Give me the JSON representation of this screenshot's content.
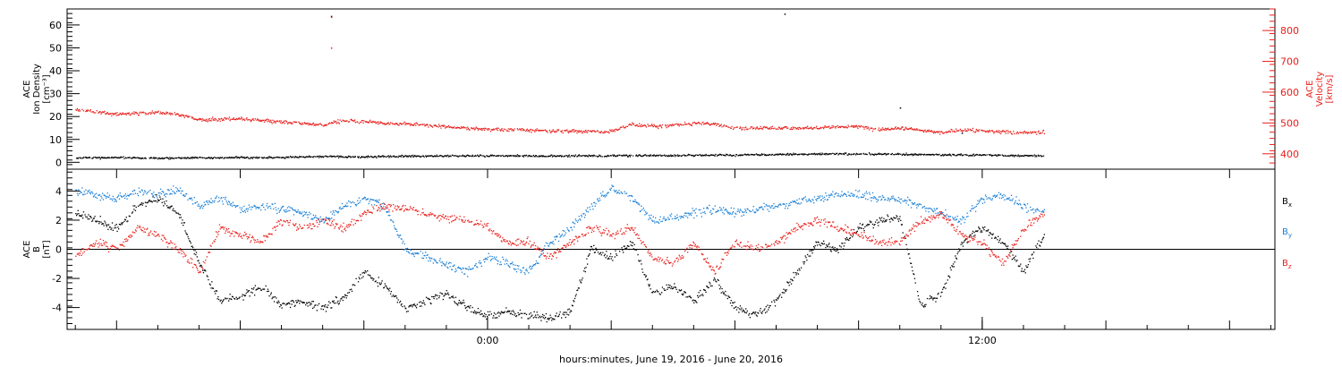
{
  "colors": {
    "black": "#000000",
    "red": "#e8201c",
    "blue": "#1a7fd6",
    "background": "#ffffff"
  },
  "xlabel": "hours:minutes, June 19, 2016 - June 20, 2016",
  "chart_data": [
    {
      "type": "scatter",
      "panel": "plasma",
      "x_unit": "hours since 2016-06-19 00:00 UTC",
      "xlim": [
        -10.2,
        19.1
      ],
      "x_ticks": [
        {
          "x": 0,
          "label": "0:00"
        },
        {
          "x": 12,
          "label": "12:00"
        }
      ],
      "left_axis": {
        "label_lines": [
          "ACE",
          "Ion Density",
          "[cm⁻³]"
        ],
        "ylim": [
          -3,
          67
        ],
        "ticks": [
          "0",
          "10",
          "20",
          "30",
          "40",
          "50",
          "60"
        ]
      },
      "right_axis": {
        "label_lines": [
          "ACE",
          "Velocity",
          "[km/s]"
        ],
        "ylim": [
          350,
          870
        ],
        "ticks": [
          "400",
          "500",
          "600",
          "700",
          "800"
        ]
      },
      "series": [
        {
          "axis": "left",
          "color": "black",
          "points": [
            [
              -10.0,
              2.1
            ],
            [
              -9.0,
              2.3
            ],
            [
              -8.0,
              2.0
            ],
            [
              -7.0,
              2.2
            ],
            [
              -6.0,
              2.3
            ],
            [
              -5.0,
              2.4
            ],
            [
              -4.0,
              2.8
            ],
            [
              -3.0,
              2.6
            ],
            [
              -2.0,
              2.9
            ],
            [
              -1.0,
              3.0
            ],
            [
              0.0,
              3.1
            ],
            [
              1.0,
              3.0
            ],
            [
              2.0,
              3.0
            ],
            [
              3.0,
              3.1
            ],
            [
              4.0,
              3.2
            ],
            [
              5.0,
              3.3
            ],
            [
              6.0,
              3.4
            ],
            [
              7.0,
              3.6
            ],
            [
              8.0,
              3.8
            ],
            [
              9.0,
              3.9
            ],
            [
              10.0,
              3.7
            ],
            [
              11.0,
              3.5
            ],
            [
              12.0,
              3.4
            ],
            [
              13.0,
              3.1
            ],
            [
              13.5,
              3.0
            ],
            [
              -3.8,
              64.0
            ],
            [
              7.2,
              65.0
            ],
            [
              10.0,
              24.0
            ],
            [
              11.5,
              13.0
            ]
          ]
        },
        {
          "axis": "right",
          "color": "red",
          "points": [
            [
              -10.0,
              545
            ],
            [
              -9.6,
              540
            ],
            [
              -9.0,
              530
            ],
            [
              -8.0,
              535
            ],
            [
              -7.6,
              532
            ],
            [
              -7.0,
              512
            ],
            [
              -6.0,
              515
            ],
            [
              -5.0,
              505
            ],
            [
              -4.5,
              500
            ],
            [
              -4.0,
              495
            ],
            [
              -3.5,
              510
            ],
            [
              -2.5,
              500
            ],
            [
              -1.5,
              495
            ],
            [
              -0.5,
              485
            ],
            [
              0.0,
              482
            ],
            [
              1.0,
              478
            ],
            [
              2.0,
              475
            ],
            [
              3.0,
              474
            ],
            [
              3.5,
              497
            ],
            [
              4.0,
              490
            ],
            [
              5.0,
              500
            ],
            [
              5.5,
              498
            ],
            [
              6.0,
              485
            ],
            [
              7.0,
              484
            ],
            [
              8.0,
              485
            ],
            [
              9.0,
              490
            ],
            [
              9.5,
              480
            ],
            [
              10.0,
              485
            ],
            [
              10.5,
              478
            ],
            [
              11.0,
              470
            ],
            [
              11.5,
              480
            ],
            [
              12.0,
              476
            ],
            [
              13.0,
              470
            ],
            [
              13.5,
              472
            ],
            [
              -3.8,
              845
            ],
            [
              -3.8,
              745
            ]
          ]
        }
      ]
    },
    {
      "type": "scatter",
      "panel": "imf",
      "x_unit": "hours since 2016-06-19 00:00 UTC",
      "xlim": [
        -10.2,
        19.1
      ],
      "left_axis": {
        "label_lines": [
          "ACE",
          "B",
          "[nT]"
        ],
        "ylim": [
          -5.5,
          5.5
        ],
        "ticks": [
          "-4",
          "-2",
          "0",
          "2",
          "4"
        ]
      },
      "zero_line": 0,
      "legend": [
        {
          "label": "B",
          "sub": "x",
          "color": "black"
        },
        {
          "label": "B",
          "sub": "y",
          "color": "blue"
        },
        {
          "label": "B",
          "sub": "z",
          "color": "red"
        }
      ],
      "series": [
        {
          "name": "Bx",
          "color": "black",
          "points": [
            [
              -10.0,
              2.5
            ],
            [
              -9.5,
              2.0
            ],
            [
              -9.0,
              1.5
            ],
            [
              -8.5,
              3.0
            ],
            [
              -8.0,
              3.5
            ],
            [
              -7.5,
              2.5
            ],
            [
              -7.0,
              -1.0
            ],
            [
              -6.5,
              -3.5
            ],
            [
              -6.0,
              -3.2
            ],
            [
              -5.5,
              -2.5
            ],
            [
              -5.0,
              -3.8
            ],
            [
              -4.5,
              -3.5
            ],
            [
              -4.0,
              -4.0
            ],
            [
              -3.5,
              -3.3
            ],
            [
              -3.0,
              -1.5
            ],
            [
              -2.5,
              -2.5
            ],
            [
              -2.0,
              -4.0
            ],
            [
              -1.5,
              -3.5
            ],
            [
              -1.0,
              -3.0
            ],
            [
              -0.5,
              -4.0
            ],
            [
              0.0,
              -4.6
            ],
            [
              0.5,
              -4.3
            ],
            [
              1.0,
              -4.5
            ],
            [
              1.5,
              -4.7
            ],
            [
              2.0,
              -4.2
            ],
            [
              2.5,
              0.0
            ],
            [
              3.0,
              -0.5
            ],
            [
              3.5,
              0.5
            ],
            [
              4.0,
              -3.0
            ],
            [
              4.5,
              -2.5
            ],
            [
              5.0,
              -3.5
            ],
            [
              5.5,
              -2.0
            ],
            [
              6.0,
              -4.0
            ],
            [
              6.5,
              -4.5
            ],
            [
              7.0,
              -3.5
            ],
            [
              7.5,
              -1.5
            ],
            [
              8.0,
              0.5
            ],
            [
              8.5,
              0.0
            ],
            [
              9.0,
              1.5
            ],
            [
              9.5,
              2.0
            ],
            [
              10.0,
              2.2
            ],
            [
              10.5,
              -3.8
            ],
            [
              11.0,
              -3.0
            ],
            [
              11.5,
              0.5
            ],
            [
              12.0,
              1.5
            ],
            [
              12.5,
              0.5
            ],
            [
              13.0,
              -1.5
            ],
            [
              13.5,
              1.0
            ]
          ]
        },
        {
          "name": "By",
          "color": "blue",
          "points": [
            [
              -10.0,
              4.0
            ],
            [
              -9.5,
              3.8
            ],
            [
              -9.0,
              3.5
            ],
            [
              -8.5,
              4.0
            ],
            [
              -8.0,
              3.8
            ],
            [
              -7.5,
              4.2
            ],
            [
              -7.0,
              3.0
            ],
            [
              -6.5,
              3.5
            ],
            [
              -6.0,
              2.8
            ],
            [
              -5.5,
              3.0
            ],
            [
              -5.0,
              2.8
            ],
            [
              -4.5,
              2.5
            ],
            [
              -4.0,
              2.0
            ],
            [
              -3.5,
              3.0
            ],
            [
              -3.0,
              3.5
            ],
            [
              -2.5,
              3.0
            ],
            [
              -2.0,
              0.0
            ],
            [
              -1.5,
              -0.5
            ],
            [
              -1.0,
              -1.0
            ],
            [
              -0.5,
              -1.5
            ],
            [
              0.0,
              -0.5
            ],
            [
              0.5,
              -1.0
            ],
            [
              1.0,
              -1.5
            ],
            [
              1.5,
              0.5
            ],
            [
              2.0,
              1.5
            ],
            [
              2.5,
              3.0
            ],
            [
              3.0,
              4.2
            ],
            [
              3.5,
              3.5
            ],
            [
              4.0,
              2.0
            ],
            [
              4.5,
              2.2
            ],
            [
              5.0,
              2.5
            ],
            [
              5.5,
              2.8
            ],
            [
              6.0,
              2.5
            ],
            [
              6.5,
              2.8
            ],
            [
              7.0,
              3.0
            ],
            [
              7.5,
              3.2
            ],
            [
              8.0,
              3.5
            ],
            [
              8.5,
              3.8
            ],
            [
              9.0,
              3.8
            ],
            [
              9.5,
              3.5
            ],
            [
              10.0,
              3.5
            ],
            [
              10.5,
              3.0
            ],
            [
              11.0,
              2.5
            ],
            [
              11.5,
              2.0
            ],
            [
              12.0,
              3.5
            ],
            [
              12.5,
              3.8
            ],
            [
              13.0,
              3.0
            ],
            [
              13.5,
              2.5
            ]
          ]
        },
        {
          "name": "Bz",
          "color": "red",
          "points": [
            [
              -10.0,
              -0.5
            ],
            [
              -9.5,
              0.5
            ],
            [
              -9.0,
              0.0
            ],
            [
              -8.5,
              1.5
            ],
            [
              -8.0,
              1.0
            ],
            [
              -7.5,
              0.0
            ],
            [
              -7.0,
              -1.5
            ],
            [
              -6.5,
              1.5
            ],
            [
              -6.0,
              1.0
            ],
            [
              -5.5,
              0.5
            ],
            [
              -5.0,
              2.0
            ],
            [
              -4.5,
              1.5
            ],
            [
              -4.0,
              2.0
            ],
            [
              -3.5,
              1.5
            ],
            [
              -3.0,
              2.5
            ],
            [
              -2.5,
              3.0
            ],
            [
              -2.0,
              2.8
            ],
            [
              -1.5,
              2.5
            ],
            [
              -1.0,
              2.2
            ],
            [
              -0.5,
              2.0
            ],
            [
              0.0,
              1.5
            ],
            [
              0.5,
              0.5
            ],
            [
              1.0,
              0.5
            ],
            [
              1.5,
              -0.5
            ],
            [
              2.0,
              0.5
            ],
            [
              2.5,
              1.5
            ],
            [
              3.0,
              1.0
            ],
            [
              3.5,
              1.5
            ],
            [
              4.0,
              -0.5
            ],
            [
              4.5,
              -1.0
            ],
            [
              5.0,
              0.5
            ],
            [
              5.5,
              -1.5
            ],
            [
              6.0,
              0.5
            ],
            [
              6.5,
              0.0
            ],
            [
              7.0,
              0.5
            ],
            [
              7.5,
              1.5
            ],
            [
              8.0,
              2.0
            ],
            [
              8.5,
              1.5
            ],
            [
              9.0,
              1.0
            ],
            [
              9.5,
              0.5
            ],
            [
              10.0,
              0.5
            ],
            [
              10.5,
              2.0
            ],
            [
              11.0,
              2.5
            ],
            [
              11.5,
              1.0
            ],
            [
              12.0,
              0.5
            ],
            [
              12.5,
              -1.0
            ],
            [
              13.0,
              1.5
            ],
            [
              13.5,
              2.5
            ]
          ]
        }
      ]
    }
  ]
}
